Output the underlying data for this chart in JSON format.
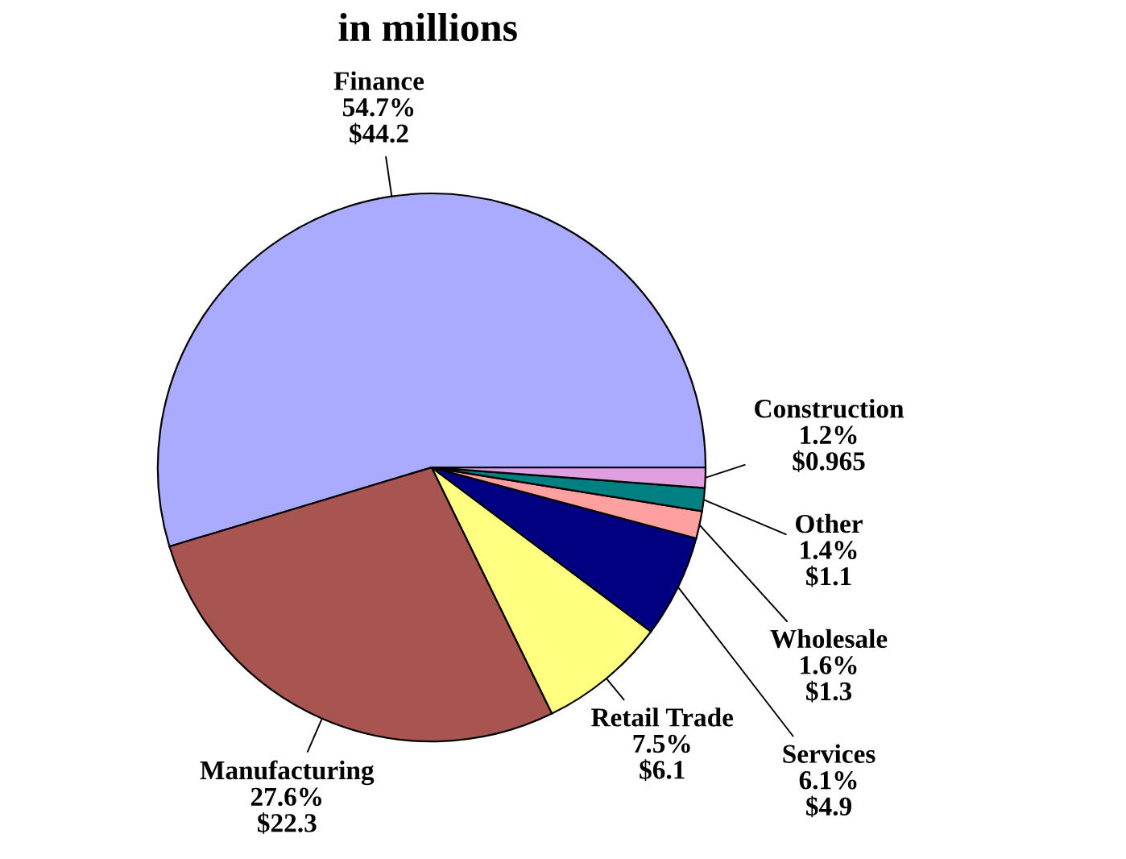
{
  "chart_data": {
    "type": "pie",
    "title": "in millions",
    "categories": [
      "Finance",
      "Manufacturing",
      "Retail Trade",
      "Services",
      "Wholesale",
      "Other",
      "Construction"
    ],
    "values": [
      44.2,
      22.3,
      6.1,
      4.9,
      1.3,
      1.1,
      0.965
    ],
    "value_labels": [
      "54.7%\n$44.2",
      "27.6%\n$22.3",
      "7.5%\n$6.1",
      "6.1%\n$4.9",
      "1.6%\n$1.3",
      "1.4%\n$1.1",
      "1.2%\n$0.965"
    ],
    "colors": [
      "#aaaaff",
      "#a85450",
      "#ffff80",
      "#000080",
      "#ffa0a0",
      "#008080",
      "#e0a0e0"
    ]
  }
}
